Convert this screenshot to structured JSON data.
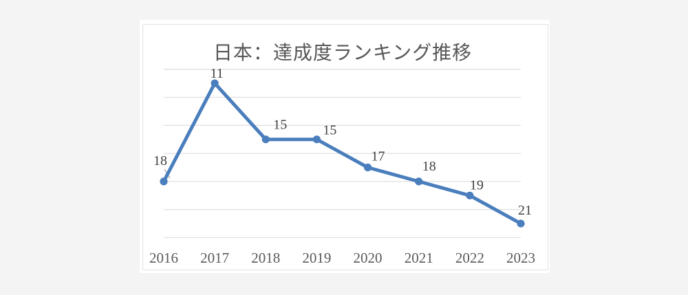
{
  "chart_data": {
    "type": "line",
    "title": "日本：達成度ランキング推移",
    "categories": [
      "2016",
      "2017",
      "2018",
      "2019",
      "2020",
      "2021",
      "2022",
      "2023"
    ],
    "values": [
      18,
      11,
      15,
      15,
      17,
      18,
      19,
      21
    ],
    "series": [
      {
        "name": "達成度ランキング",
        "values": [
          18,
          11,
          15,
          15,
          17,
          18,
          19,
          21
        ]
      }
    ],
    "xlabel": "",
    "ylabel": "",
    "y_axis": {
      "min": 10,
      "max": 22,
      "step": 2,
      "inverted": true,
      "tick_labels_visible": false
    },
    "x_axis": {
      "tick_labels_visible": true
    },
    "grid": "horizontal",
    "legend": "none",
    "data_labels_visible": true,
    "colors": {
      "line": "#4a7ebc",
      "marker": "#4a7ebc",
      "data_label": "#404040",
      "axis_label": "#595959",
      "title": "#575757",
      "gridline": "#e0e0e0",
      "leader_line": "#a6a6a6",
      "card_background": "#ffffff",
      "card_border": "#e2e2e2",
      "page_background": "#f4f4f4"
    }
  }
}
